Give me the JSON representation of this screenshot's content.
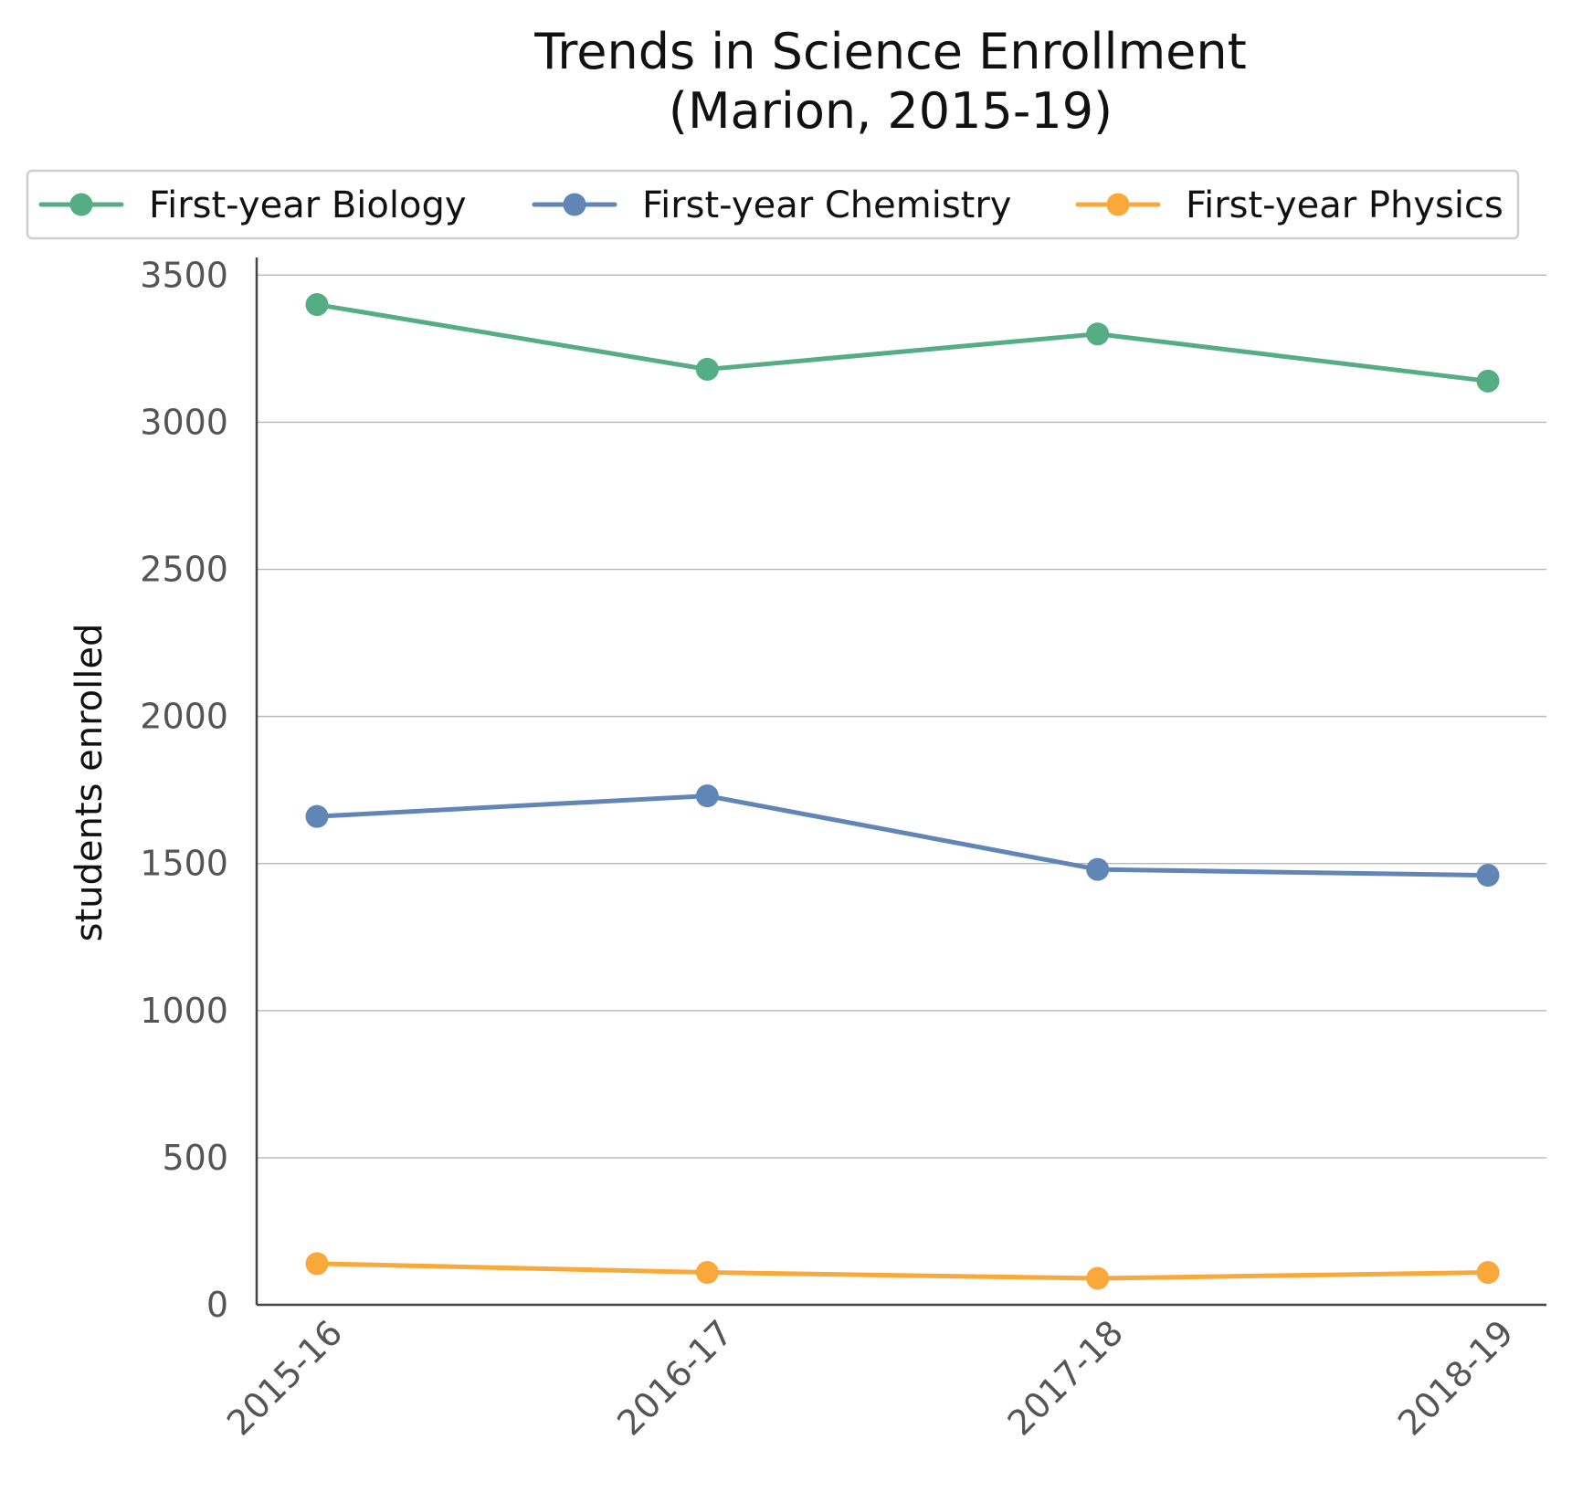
{
  "chart_data": {
    "type": "line",
    "title": "Trends in Science Enrollment",
    "subtitle": "(Marion, 2015-19)",
    "xlabel": "",
    "ylabel": "students enrolled",
    "categories": [
      "2015-16",
      "2016-17",
      "2017-18",
      "2018-19"
    ],
    "yticks": [
      0,
      500,
      1000,
      1500,
      2000,
      2500,
      3000,
      3500
    ],
    "ylim": [
      0,
      3560
    ],
    "grid": "horizontal",
    "legend_position": "top",
    "series": [
      {
        "name": "First-year Biology",
        "color": "#55ad85",
        "values": [
          3400,
          3180,
          3300,
          3140
        ]
      },
      {
        "name": "First-year Chemistry",
        "color": "#6186b6",
        "values": [
          1660,
          1730,
          1480,
          1460
        ]
      },
      {
        "name": "First-year Physics",
        "color": "#f9a93a",
        "values": [
          140,
          110,
          90,
          110
        ]
      }
    ]
  }
}
